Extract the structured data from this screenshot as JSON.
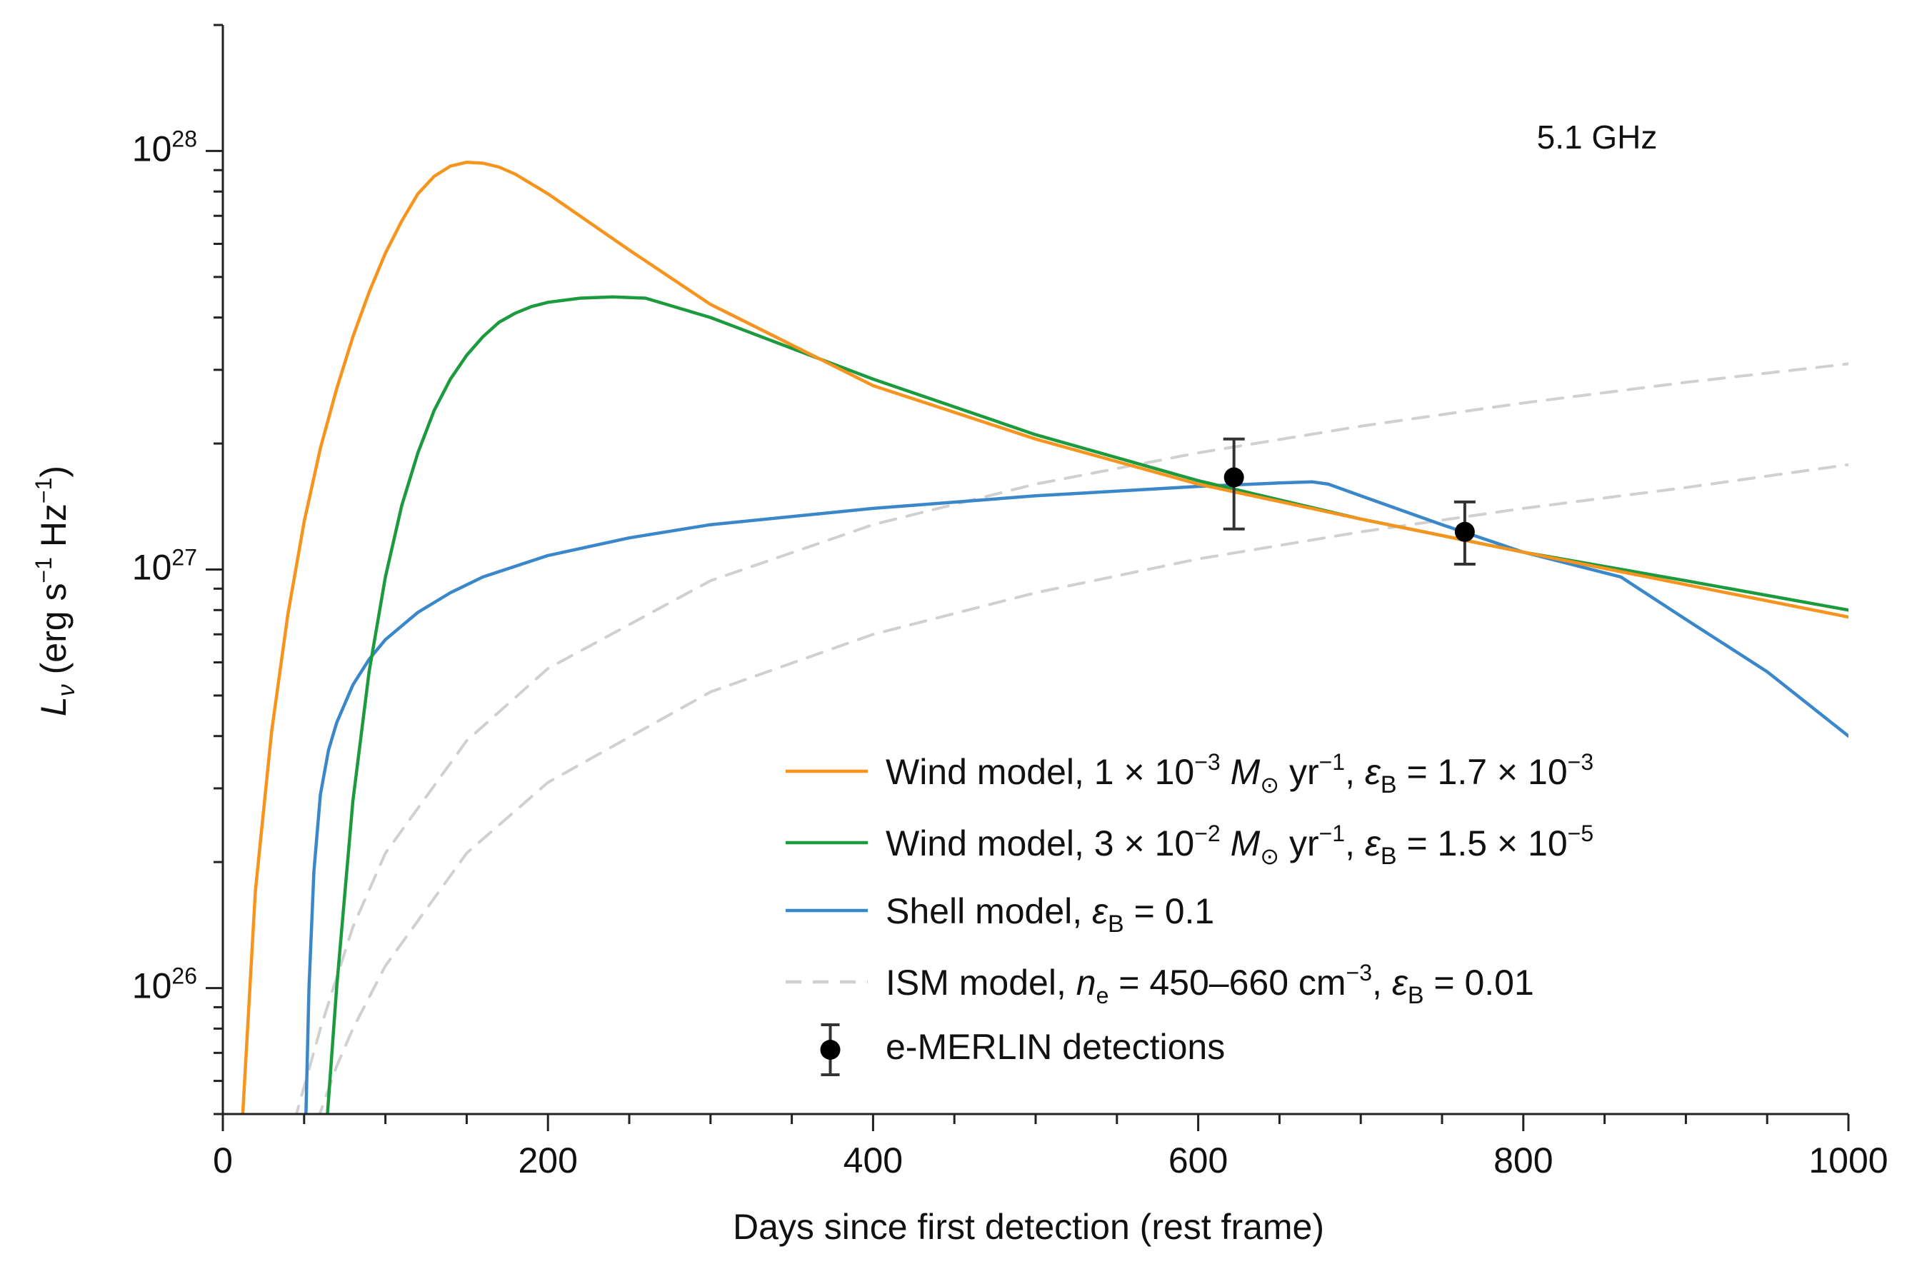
{
  "chart_data": {
    "type": "line",
    "annotation": "5.1 GHz",
    "xlabel": "Days since first detection (rest frame)",
    "ylabel": "L_ν (erg s^-1 Hz^-1)",
    "ylabel_parts": {
      "symbol": "L",
      "sub": "ν",
      "units_start": " (erg s",
      "exp1": "−1",
      "units_mid": " Hz",
      "exp2": "−1",
      "units_end": ")"
    },
    "xlim": [
      0,
      1000
    ],
    "ylim": [
      5e+25,
      2e+28
    ],
    "yscale": "log",
    "x_ticks": [
      0,
      200,
      400,
      600,
      800,
      1000
    ],
    "x_tick_labels": [
      "0",
      "200",
      "400",
      "600",
      "800",
      "1000"
    ],
    "x_minor_step": 50,
    "y_ticks": [
      {
        "value": 1e+26,
        "base": "10",
        "exp": "26"
      },
      {
        "value": 1e+27,
        "base": "10",
        "exp": "27"
      },
      {
        "value": 1e+28,
        "base": "10",
        "exp": "28"
      }
    ],
    "series": [
      {
        "name": "Wind model, 1 × 10^-3 M☉ yr^-1, εB = 1.7 × 10^-3",
        "color": "#f7941d",
        "style": "solid",
        "x": [
          12,
          20,
          30,
          40,
          50,
          60,
          70,
          80,
          90,
          100,
          110,
          120,
          130,
          140,
          150,
          160,
          170,
          180,
          200,
          250,
          300,
          400,
          500,
          600,
          700,
          800,
          900,
          1000
        ],
        "values": [
          4.8e+25,
          1.7e+26,
          4.1e+26,
          7.8e+26,
          1.3e+27,
          1.95e+27,
          2.7e+27,
          3.6e+27,
          4.6e+27,
          5.7e+27,
          6.8e+27,
          7.9e+27,
          8.7e+27,
          9.2e+27,
          9.4e+27,
          9.35e+27,
          9.15e+27,
          8.8e+27,
          7.9e+27,
          5.8e+27,
          4.3e+27,
          2.75e+27,
          2.05e+27,
          1.6e+27,
          1.32e+27,
          1.1e+27,
          9.2e+26,
          7.7e+26
        ]
      },
      {
        "name": "Wind model, 3 × 10^-2 M☉ yr^-1, εB = 1.5 × 10^-5",
        "color": "#1c9a3e",
        "style": "solid",
        "x": [
          64,
          70,
          80,
          90,
          100,
          110,
          120,
          130,
          140,
          150,
          160,
          170,
          180,
          190,
          200,
          220,
          240,
          260,
          300,
          400,
          500,
          600,
          700,
          800,
          900,
          1000
        ],
        "values": [
          4.8e+25,
          1e+26,
          2.8e+26,
          5.7e+26,
          9.6e+26,
          1.42e+27,
          1.9e+27,
          2.4e+27,
          2.85e+27,
          3.25e+27,
          3.6e+27,
          3.9e+27,
          4.1e+27,
          4.25e+27,
          4.35e+27,
          4.45e+27,
          4.48e+27,
          4.45e+27,
          4e+27,
          2.85e+27,
          2.1e+27,
          1.63e+27,
          1.32e+27,
          1.1e+27,
          9.4e+26,
          8e+26
        ]
      },
      {
        "name": "Shell model, εB = 0.1",
        "color": "#3a88c9",
        "style": "solid",
        "x": [
          51,
          53,
          56,
          60,
          65,
          70,
          80,
          90,
          100,
          120,
          140,
          160,
          200,
          250,
          300,
          400,
          500,
          600,
          650,
          670,
          680,
          700,
          750,
          800,
          860,
          900,
          950,
          1000
        ],
        "values": [
          4.8e+25,
          1e+26,
          1.9e+26,
          2.9e+26,
          3.7e+26,
          4.3e+26,
          5.3e+26,
          6.1e+26,
          6.8e+26,
          7.9e+26,
          8.8e+26,
          9.6e+26,
          1.08e+27,
          1.19e+27,
          1.28e+27,
          1.4e+27,
          1.5e+27,
          1.58e+27,
          1.61e+27,
          1.62e+27,
          1.6e+27,
          1.5e+27,
          1.28e+27,
          1.1e+27,
          9.6e+26,
          7.6e+26,
          5.7e+26,
          4e+26
        ]
      },
      {
        "name": "ISM model, n_e = 450–660 cm^-3, εB = 0.01 (upper)",
        "color": "#d0d0d0",
        "style": "dashed",
        "x": [
          44,
          60,
          80,
          100,
          150,
          200,
          300,
          400,
          500,
          600,
          700,
          800,
          900,
          1000
        ],
        "values": [
          4.8e+25,
          8e+25,
          1.4e+26,
          2.1e+26,
          3.9e+26,
          5.8e+26,
          9.4e+26,
          1.28e+27,
          1.6e+27,
          1.9e+27,
          2.2e+27,
          2.5e+27,
          2.8e+27,
          3.1e+27
        ]
      },
      {
        "name": "ISM model, n_e = 450–660 cm^-3, εB = 0.01 (lower)",
        "color": "#d0d0d0",
        "style": "dashed",
        "x": [
          58,
          70,
          80,
          100,
          150,
          200,
          300,
          400,
          500,
          600,
          700,
          800,
          900,
          1000
        ],
        "values": [
          4.8e+25,
          6.5e+25,
          8e+25,
          1.13e+26,
          2.1e+26,
          3.1e+26,
          5.1e+26,
          7e+26,
          8.8e+26,
          1.06e+27,
          1.23e+27,
          1.4e+27,
          1.57e+27,
          1.78e+27
        ]
      }
    ],
    "detections": {
      "name": "e-MERLIN detections",
      "points": [
        {
          "x": 622,
          "y": 1.66e+27,
          "y_low": 1.25e+27,
          "y_high": 2.05e+27
        },
        {
          "x": 764,
          "y": 1.23e+27,
          "y_low": 1.03e+27,
          "y_high": 1.45e+27
        }
      ]
    },
    "legend": {
      "placement": "lower-right",
      "entries": [
        {
          "key": "orange",
          "color": "#f7941d",
          "style": "solid",
          "prefix": "Wind model, 1 × 10",
          "exp": "−3",
          "mid": " ",
          "symbol": "M",
          "symbol_sub": "⊙",
          "rest": " yr",
          "rest_exp": "−1",
          "tail": ", ",
          "eps": "ε",
          "eps_sub": "B",
          "value": " = 1.7 × 10",
          "value_exp": "−3"
        },
        {
          "key": "green",
          "color": "#1c9a3e",
          "style": "solid",
          "prefix": "Wind model, 3 × 10",
          "exp": "−2",
          "mid": " ",
          "symbol": "M",
          "symbol_sub": "⊙",
          "rest": " yr",
          "rest_exp": "−1",
          "tail": ", ",
          "eps": "ε",
          "eps_sub": "B",
          "value": " = 1.5 × 10",
          "value_exp": "−5"
        },
        {
          "key": "blue",
          "color": "#3a88c9",
          "style": "solid",
          "prefix": "Shell model, ",
          "eps": "ε",
          "eps_sub": "B",
          "value": " = 0.1"
        },
        {
          "key": "gray",
          "color": "#d0d0d0",
          "style": "dashed",
          "prefix": "ISM model, ",
          "n": "n",
          "n_sub": "e",
          "n_rest": " = 450–660 cm",
          "n_exp": "−3",
          "tail": ", ",
          "eps": "ε",
          "eps_sub": "B",
          "value": " = 0.01"
        },
        {
          "key": "points",
          "color": "#000000",
          "style": "marker",
          "prefix": "e-MERLIN detections"
        }
      ]
    }
  }
}
